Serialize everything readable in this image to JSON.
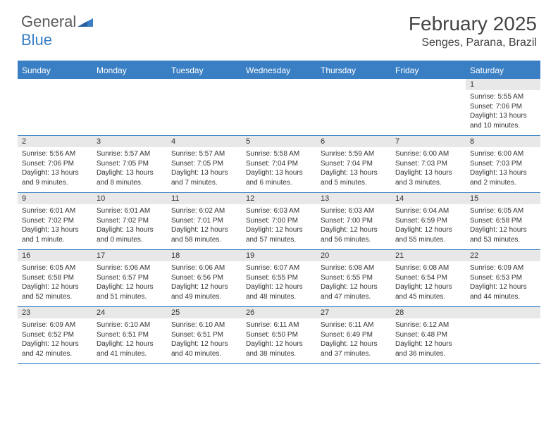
{
  "logo": {
    "text1": "General",
    "text2": "Blue"
  },
  "title": "February 2025",
  "location": "Senges, Parana, Brazil",
  "colors": {
    "accent": "#3a7fc4",
    "header_bg": "#3a7fc4",
    "daynum_bg": "#e8e8e8",
    "text": "#333333",
    "logo_gray": "#5a5a5a"
  },
  "day_headers": [
    "Sunday",
    "Monday",
    "Tuesday",
    "Wednesday",
    "Thursday",
    "Friday",
    "Saturday"
  ],
  "weeks": [
    [
      null,
      null,
      null,
      null,
      null,
      null,
      {
        "n": "1",
        "sunrise": "Sunrise: 5:55 AM",
        "sunset": "Sunset: 7:06 PM",
        "daylight": "Daylight: 13 hours and 10 minutes."
      }
    ],
    [
      {
        "n": "2",
        "sunrise": "Sunrise: 5:56 AM",
        "sunset": "Sunset: 7:06 PM",
        "daylight": "Daylight: 13 hours and 9 minutes."
      },
      {
        "n": "3",
        "sunrise": "Sunrise: 5:57 AM",
        "sunset": "Sunset: 7:05 PM",
        "daylight": "Daylight: 13 hours and 8 minutes."
      },
      {
        "n": "4",
        "sunrise": "Sunrise: 5:57 AM",
        "sunset": "Sunset: 7:05 PM",
        "daylight": "Daylight: 13 hours and 7 minutes."
      },
      {
        "n": "5",
        "sunrise": "Sunrise: 5:58 AM",
        "sunset": "Sunset: 7:04 PM",
        "daylight": "Daylight: 13 hours and 6 minutes."
      },
      {
        "n": "6",
        "sunrise": "Sunrise: 5:59 AM",
        "sunset": "Sunset: 7:04 PM",
        "daylight": "Daylight: 13 hours and 5 minutes."
      },
      {
        "n": "7",
        "sunrise": "Sunrise: 6:00 AM",
        "sunset": "Sunset: 7:03 PM",
        "daylight": "Daylight: 13 hours and 3 minutes."
      },
      {
        "n": "8",
        "sunrise": "Sunrise: 6:00 AM",
        "sunset": "Sunset: 7:03 PM",
        "daylight": "Daylight: 13 hours and 2 minutes."
      }
    ],
    [
      {
        "n": "9",
        "sunrise": "Sunrise: 6:01 AM",
        "sunset": "Sunset: 7:02 PM",
        "daylight": "Daylight: 13 hours and 1 minute."
      },
      {
        "n": "10",
        "sunrise": "Sunrise: 6:01 AM",
        "sunset": "Sunset: 7:02 PM",
        "daylight": "Daylight: 13 hours and 0 minutes."
      },
      {
        "n": "11",
        "sunrise": "Sunrise: 6:02 AM",
        "sunset": "Sunset: 7:01 PM",
        "daylight": "Daylight: 12 hours and 58 minutes."
      },
      {
        "n": "12",
        "sunrise": "Sunrise: 6:03 AM",
        "sunset": "Sunset: 7:00 PM",
        "daylight": "Daylight: 12 hours and 57 minutes."
      },
      {
        "n": "13",
        "sunrise": "Sunrise: 6:03 AM",
        "sunset": "Sunset: 7:00 PM",
        "daylight": "Daylight: 12 hours and 56 minutes."
      },
      {
        "n": "14",
        "sunrise": "Sunrise: 6:04 AM",
        "sunset": "Sunset: 6:59 PM",
        "daylight": "Daylight: 12 hours and 55 minutes."
      },
      {
        "n": "15",
        "sunrise": "Sunrise: 6:05 AM",
        "sunset": "Sunset: 6:58 PM",
        "daylight": "Daylight: 12 hours and 53 minutes."
      }
    ],
    [
      {
        "n": "16",
        "sunrise": "Sunrise: 6:05 AM",
        "sunset": "Sunset: 6:58 PM",
        "daylight": "Daylight: 12 hours and 52 minutes."
      },
      {
        "n": "17",
        "sunrise": "Sunrise: 6:06 AM",
        "sunset": "Sunset: 6:57 PM",
        "daylight": "Daylight: 12 hours and 51 minutes."
      },
      {
        "n": "18",
        "sunrise": "Sunrise: 6:06 AM",
        "sunset": "Sunset: 6:56 PM",
        "daylight": "Daylight: 12 hours and 49 minutes."
      },
      {
        "n": "19",
        "sunrise": "Sunrise: 6:07 AM",
        "sunset": "Sunset: 6:55 PM",
        "daylight": "Daylight: 12 hours and 48 minutes."
      },
      {
        "n": "20",
        "sunrise": "Sunrise: 6:08 AM",
        "sunset": "Sunset: 6:55 PM",
        "daylight": "Daylight: 12 hours and 47 minutes."
      },
      {
        "n": "21",
        "sunrise": "Sunrise: 6:08 AM",
        "sunset": "Sunset: 6:54 PM",
        "daylight": "Daylight: 12 hours and 45 minutes."
      },
      {
        "n": "22",
        "sunrise": "Sunrise: 6:09 AM",
        "sunset": "Sunset: 6:53 PM",
        "daylight": "Daylight: 12 hours and 44 minutes."
      }
    ],
    [
      {
        "n": "23",
        "sunrise": "Sunrise: 6:09 AM",
        "sunset": "Sunset: 6:52 PM",
        "daylight": "Daylight: 12 hours and 42 minutes."
      },
      {
        "n": "24",
        "sunrise": "Sunrise: 6:10 AM",
        "sunset": "Sunset: 6:51 PM",
        "daylight": "Daylight: 12 hours and 41 minutes."
      },
      {
        "n": "25",
        "sunrise": "Sunrise: 6:10 AM",
        "sunset": "Sunset: 6:51 PM",
        "daylight": "Daylight: 12 hours and 40 minutes."
      },
      {
        "n": "26",
        "sunrise": "Sunrise: 6:11 AM",
        "sunset": "Sunset: 6:50 PM",
        "daylight": "Daylight: 12 hours and 38 minutes."
      },
      {
        "n": "27",
        "sunrise": "Sunrise: 6:11 AM",
        "sunset": "Sunset: 6:49 PM",
        "daylight": "Daylight: 12 hours and 37 minutes."
      },
      {
        "n": "28",
        "sunrise": "Sunrise: 6:12 AM",
        "sunset": "Sunset: 6:48 PM",
        "daylight": "Daylight: 12 hours and 36 minutes."
      },
      null
    ]
  ]
}
